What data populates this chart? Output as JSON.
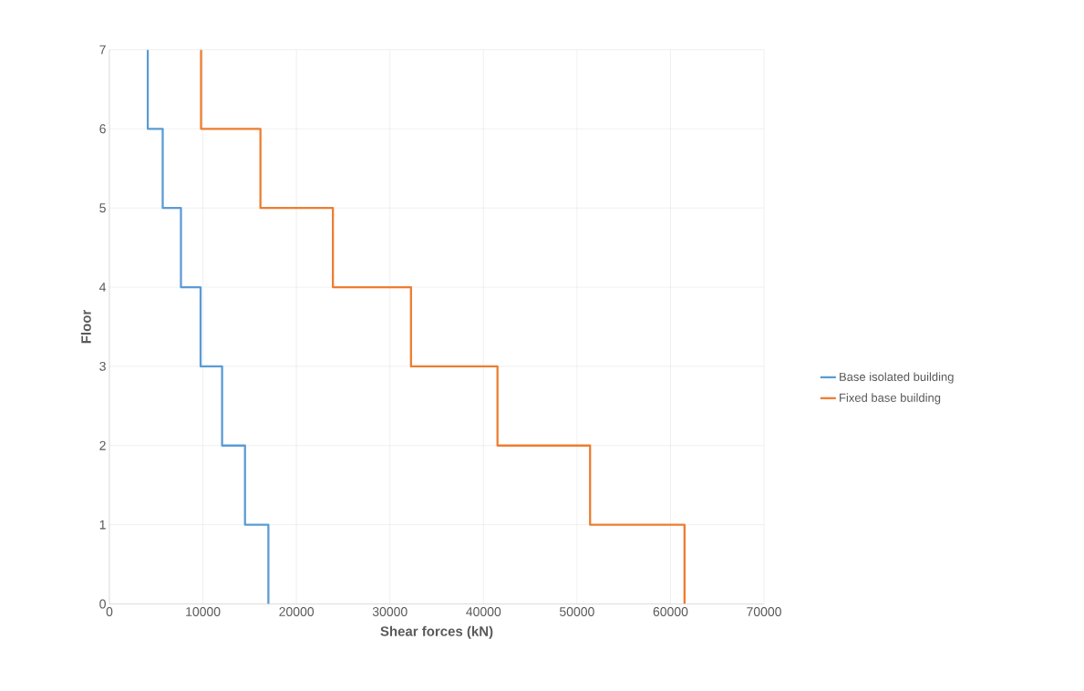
{
  "chart_data": {
    "type": "line",
    "xlabel": "Shear forces (kN)",
    "ylabel": "Floor",
    "xlim": [
      0,
      70000
    ],
    "xticks": [
      0,
      10000,
      20000,
      30000,
      40000,
      50000,
      60000,
      70000
    ],
    "ylim": [
      0,
      7
    ],
    "yticks": [
      0,
      1,
      2,
      3,
      4,
      5,
      6,
      7
    ],
    "grid": true,
    "legend": "right",
    "marker": "none",
    "line_style": "solid",
    "series": [
      {
        "name": "Base isolated building",
        "color": "#5b9bd5",
        "x": [
          17000,
          17000,
          14500,
          14500,
          12050,
          12050,
          9750,
          9750,
          7650,
          7650,
          5700,
          5700,
          4100,
          4100
        ],
        "values": [
          0,
          1,
          1,
          2,
          2,
          3,
          3,
          4,
          4,
          5,
          5,
          6,
          6,
          7
        ]
      },
      {
        "name": "Fixed base building",
        "color": "#ed7d31",
        "x": [
          61500,
          61500,
          51400,
          51400,
          41500,
          41500,
          32250,
          32250,
          23900,
          23900,
          16150,
          16150,
          9800,
          9800
        ],
        "values": [
          0,
          1,
          1,
          2,
          2,
          3,
          3,
          4,
          4,
          5,
          5,
          6,
          6,
          7
        ]
      }
    ]
  }
}
